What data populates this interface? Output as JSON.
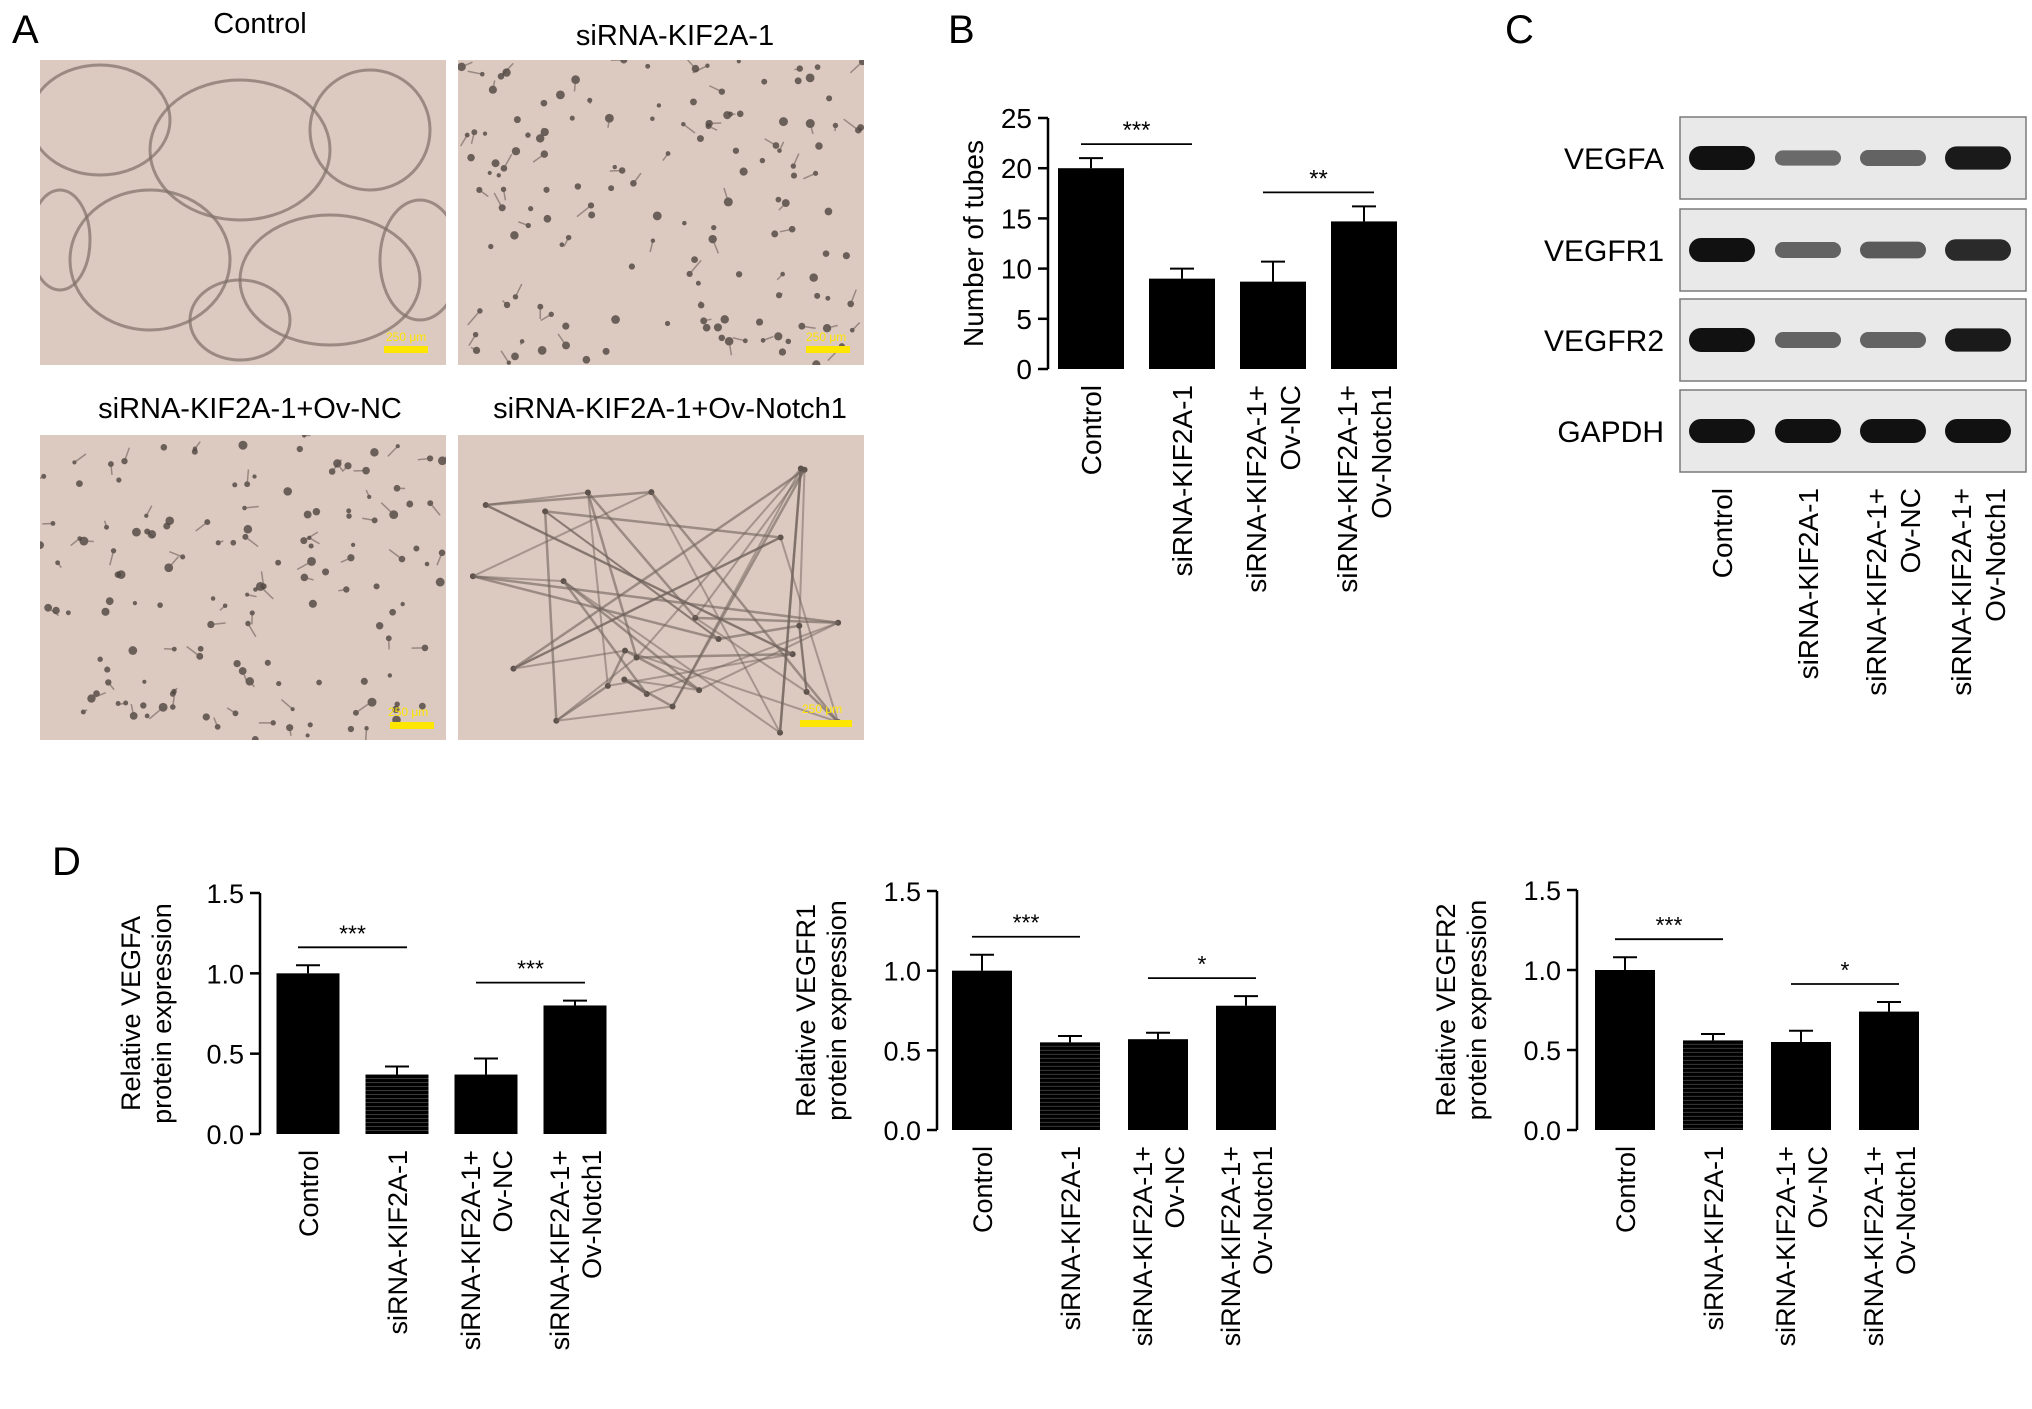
{
  "panels": {
    "a": "A",
    "b": "B",
    "c": "C",
    "d": "D"
  },
  "panel_a": {
    "images": [
      {
        "title": "Control",
        "scale": "250 μm",
        "pattern": "large-loops"
      },
      {
        "title": "siRNA-KIF2A-1",
        "scale": "250 μm",
        "pattern": "sparse-cells"
      },
      {
        "title": "siRNA-KIF2A-1+Ov-NC",
        "scale": "250 μm",
        "pattern": "sparse-cells"
      },
      {
        "title": "siRNA-KIF2A-1+Ov-Notch1",
        "scale": "250 μm",
        "pattern": "network"
      }
    ],
    "colors": {
      "background": "#dcc9c0",
      "scalebar": "#ffe600"
    }
  },
  "panel_c": {
    "rows": [
      "VEGFA",
      "VEGFR1",
      "VEGFR2",
      "GAPDH"
    ],
    "columns": [
      "Control",
      "siRNA-KIF2A-1",
      "siRNA-KIF2A-1+\nOv-NC",
      "siRNA-KIF2A-1+\nOv-Notch1"
    ],
    "band_intensity": [
      [
        1.0,
        0.45,
        0.5,
        0.95
      ],
      [
        1.0,
        0.5,
        0.55,
        0.85
      ],
      [
        1.0,
        0.5,
        0.5,
        0.95
      ],
      [
        1.0,
        1.0,
        1.0,
        1.0
      ]
    ]
  },
  "chart_data": [
    {
      "type": "bar",
      "panel": "B",
      "categories": [
        "Control",
        "siRNA-KIF2A-1",
        "siRNA-KIF2A-1+\nOv-NC",
        "siRNA-KIF2A-1+\nOv-Notch1"
      ],
      "values": [
        20.0,
        9.0,
        8.7,
        14.7
      ],
      "errors": [
        1.0,
        1.0,
        2.0,
        1.5
      ],
      "ylabel": "Number of tubes",
      "ylim": [
        0,
        25
      ],
      "yticks": [
        "0",
        "5",
        "10",
        "15",
        "20",
        "25"
      ],
      "significance": [
        {
          "from": 0,
          "to": 1,
          "label": "***"
        },
        {
          "from": 2,
          "to": 3,
          "label": "**"
        }
      ]
    },
    {
      "type": "bar",
      "panel": "D",
      "categories": [
        "Control",
        "siRNA-KIF2A-1",
        "siRNA-KIF2A-1+\nOv-NC",
        "siRNA-KIF2A-1+\nOv-Notch1"
      ],
      "values": [
        1.0,
        0.37,
        0.37,
        0.8
      ],
      "errors": [
        0.05,
        0.05,
        0.1,
        0.03
      ],
      "ylabel": "Relative VEGFA\nprotein expression",
      "ylim": [
        0,
        1.5
      ],
      "yticks": [
        "0.0",
        "0.5",
        "1.0",
        "1.5"
      ],
      "significance": [
        {
          "from": 0,
          "to": 1,
          "label": "***"
        },
        {
          "from": 2,
          "to": 3,
          "label": "***"
        }
      ]
    },
    {
      "type": "bar",
      "panel": "D",
      "categories": [
        "Control",
        "siRNA-KIF2A-1",
        "siRNA-KIF2A-1+\nOv-NC",
        "siRNA-KIF2A-1+\nOv-Notch1"
      ],
      "values": [
        1.0,
        0.55,
        0.57,
        0.78
      ],
      "errors": [
        0.1,
        0.04,
        0.04,
        0.06
      ],
      "ylabel": "Relative VEGFR1\nprotein expression",
      "ylim": [
        0,
        1.5
      ],
      "yticks": [
        "0.0",
        "0.5",
        "1.0",
        "1.5"
      ],
      "significance": [
        {
          "from": 0,
          "to": 1,
          "label": "***"
        },
        {
          "from": 2,
          "to": 3,
          "label": "*"
        }
      ]
    },
    {
      "type": "bar",
      "panel": "D",
      "categories": [
        "Control",
        "siRNA-KIF2A-1",
        "siRNA-KIF2A-1+\nOv-NC",
        "siRNA-KIF2A-1+\nOv-Notch1"
      ],
      "values": [
        1.0,
        0.56,
        0.55,
        0.74
      ],
      "errors": [
        0.08,
        0.04,
        0.07,
        0.06
      ],
      "ylabel": "Relative VEGFR2\nprotein expression",
      "ylim": [
        0,
        1.5
      ],
      "yticks": [
        "0.0",
        "0.5",
        "1.0",
        "1.5"
      ],
      "significance": [
        {
          "from": 0,
          "to": 1,
          "label": "***"
        },
        {
          "from": 2,
          "to": 3,
          "label": "*"
        }
      ]
    }
  ]
}
